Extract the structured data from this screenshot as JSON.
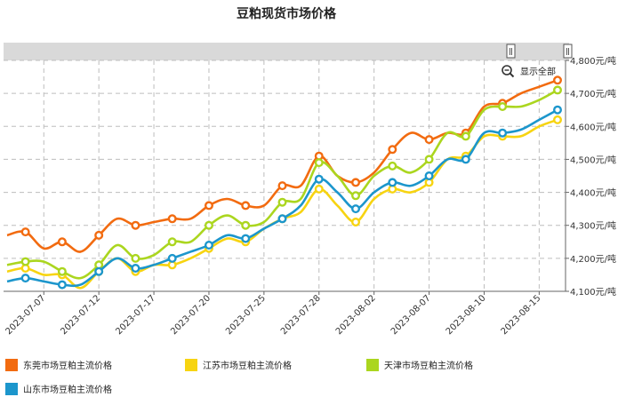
{
  "chart_data": {
    "type": "line",
    "title": "豆粕现货市场价格",
    "y_unit": "元/吨",
    "ylim": [
      4100,
      4800
    ],
    "y_ticks": [
      4100,
      4200,
      4300,
      4400,
      4500,
      4600,
      4700,
      4800
    ],
    "y_tick_labels": [
      "4,100元/吨",
      "4,200元/吨",
      "4,300元/吨",
      "4,400元/吨",
      "4,500元/吨",
      "4,600元/吨",
      "4,700元/吨",
      "4,800元/吨"
    ],
    "x_tick_labels": [
      {
        "label": "2023-07-07",
        "index": 2
      },
      {
        "label": "2023-07-12",
        "index": 5
      },
      {
        "label": "2023-07-17",
        "index": 8
      },
      {
        "label": "2023-07-20",
        "index": 11
      },
      {
        "label": "2023-07-25",
        "index": 14
      },
      {
        "label": "2023-07-28",
        "index": 17
      },
      {
        "label": "2023-08-02",
        "index": 20
      },
      {
        "label": "2023-08-07",
        "index": 23
      },
      {
        "label": "2023-08-10",
        "index": 26
      },
      {
        "label": "2023-08-15",
        "index": 29
      }
    ],
    "grid": true,
    "legend_position": "bottom",
    "show_all_label": "显示全部",
    "series": [
      {
        "name": "东莞市场豆粕主流价格",
        "color": "#f26b10",
        "values": [
          4270,
          4280,
          4230,
          4250,
          4220,
          4270,
          4320,
          4300,
          4310,
          4320,
          4320,
          4360,
          4380,
          4360,
          4360,
          4420,
          4420,
          4510,
          4450,
          4430,
          4460,
          4530,
          4580,
          4560,
          4580,
          4580,
          4660,
          4670,
          4700,
          4720,
          4740
        ]
      },
      {
        "name": "江苏市场豆粕主流价格",
        "color": "#f7d411",
        "values": [
          4160,
          4170,
          4150,
          4150,
          4110,
          4160,
          4200,
          4160,
          4180,
          4180,
          4200,
          4230,
          4260,
          4250,
          4290,
          4320,
          4340,
          4410,
          4360,
          4310,
          4380,
          4410,
          4400,
          4430,
          4500,
          4510,
          4570,
          4570,
          4570,
          4600,
          4620
        ]
      },
      {
        "name": "天津市场豆粕主流价格",
        "color": "#abd61f",
        "values": [
          4180,
          4190,
          4190,
          4160,
          4140,
          4180,
          4240,
          4200,
          4210,
          4250,
          4250,
          4300,
          4330,
          4300,
          4310,
          4370,
          4380,
          4490,
          4450,
          4390,
          4450,
          4480,
          4460,
          4500,
          4580,
          4570,
          4650,
          4660,
          4660,
          4680,
          4710
        ]
      },
      {
        "name": "山东市场豆粕主流价格",
        "color": "#1c96cc",
        "values": [
          4130,
          4140,
          4130,
          4120,
          4120,
          4160,
          4200,
          4170,
          4180,
          4200,
          4220,
          4240,
          4270,
          4260,
          4290,
          4320,
          4360,
          4440,
          4400,
          4350,
          4400,
          4430,
          4420,
          4450,
          4500,
          4500,
          4580,
          4580,
          4590,
          4620,
          4650
        ]
      }
    ]
  }
}
